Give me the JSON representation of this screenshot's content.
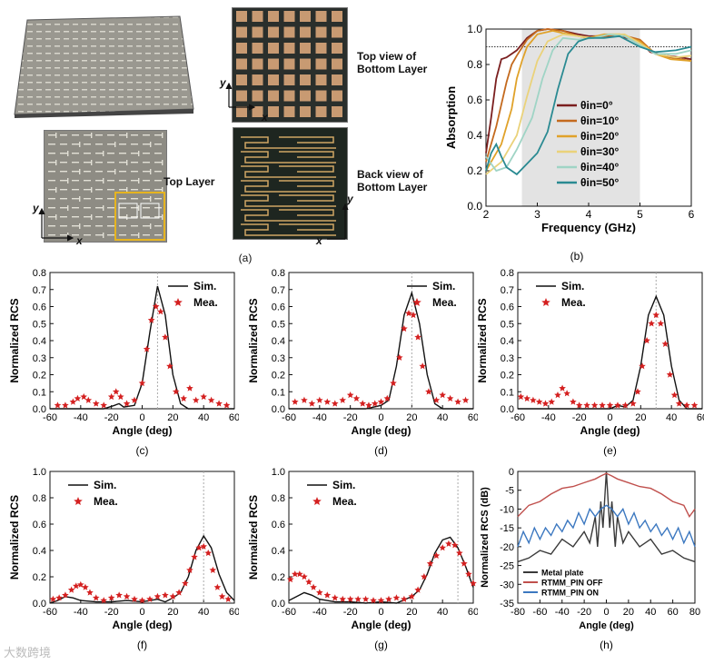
{
  "photos": {
    "top_view_label": "Top view of\nBottom Layer",
    "top_layer_label": "Top Layer",
    "back_view_label": "Back view of\nBottom Layer",
    "axis_x": "x",
    "axis_y": "y"
  },
  "panels": {
    "a": "(a)",
    "b": "(b)",
    "c": "(c)",
    "d": "(d)",
    "e": "(e)",
    "f": "(f)",
    "g": "(g)",
    "h": "(h)"
  },
  "watermark": "大数跨境",
  "chart_data": [
    {
      "id": "b",
      "type": "line",
      "xlabel": "Frequency (GHz)",
      "ylabel": "Absorption",
      "xlim": [
        2,
        6
      ],
      "ylim": [
        0,
        1.0
      ],
      "xticks": [
        2,
        3,
        4,
        5,
        6
      ],
      "yticks": [
        0.0,
        0.2,
        0.4,
        0.6,
        0.8,
        1.0
      ],
      "threshold": 0.9,
      "shade": [
        2.7,
        5.0
      ],
      "series": [
        {
          "name": "θin=0°",
          "color": "#7b1f1f",
          "x": [
            2.0,
            2.1,
            2.2,
            2.3,
            2.4,
            2.6,
            2.8,
            3.0,
            3.2,
            3.5,
            3.8,
            4.0,
            4.3,
            4.6,
            5.0,
            5.2,
            5.5,
            5.8,
            6.0
          ],
          "y": [
            0.3,
            0.5,
            0.72,
            0.83,
            0.84,
            0.88,
            0.95,
            0.99,
            1.0,
            0.99,
            0.97,
            0.96,
            0.96,
            0.96,
            0.93,
            0.87,
            0.85,
            0.84,
            0.83
          ]
        },
        {
          "name": "θin=10°",
          "color": "#c46a1e",
          "x": [
            2.0,
            2.2,
            2.4,
            2.5,
            2.6,
            2.8,
            3.0,
            3.2,
            3.5,
            3.8,
            4.0,
            4.3,
            4.6,
            5.0,
            5.3,
            5.6,
            6.0
          ],
          "y": [
            0.25,
            0.45,
            0.7,
            0.8,
            0.85,
            0.94,
            0.99,
            1.0,
            0.99,
            0.96,
            0.95,
            0.96,
            0.97,
            0.94,
            0.86,
            0.84,
            0.82
          ]
        },
        {
          "name": "θin=20°",
          "color": "#e0a22a",
          "x": [
            2.0,
            2.3,
            2.5,
            2.6,
            2.7,
            2.8,
            3.0,
            3.3,
            3.6,
            4.0,
            4.3,
            4.6,
            5.0,
            5.3,
            5.6,
            6.0
          ],
          "y": [
            0.2,
            0.35,
            0.55,
            0.72,
            0.82,
            0.9,
            0.97,
            0.99,
            0.97,
            0.95,
            0.97,
            0.97,
            0.93,
            0.86,
            0.83,
            0.82
          ]
        },
        {
          "name": "θin=30°",
          "color": "#ead27a",
          "x": [
            2.0,
            2.3,
            2.6,
            2.8,
            3.0,
            3.2,
            3.5,
            3.8,
            4.1,
            4.4,
            4.7,
            5.0,
            5.3,
            5.7,
            6.0
          ],
          "y": [
            0.18,
            0.25,
            0.4,
            0.62,
            0.82,
            0.93,
            0.97,
            0.96,
            0.95,
            0.97,
            0.97,
            0.92,
            0.86,
            0.84,
            0.85
          ]
        },
        {
          "name": "θin=40°",
          "color": "#9fd4c5",
          "x": [
            2.0,
            2.2,
            2.4,
            2.6,
            2.9,
            3.1,
            3.3,
            3.5,
            3.8,
            4.1,
            4.4,
            4.7,
            5.0,
            5.3,
            5.7,
            6.0
          ],
          "y": [
            0.28,
            0.2,
            0.22,
            0.32,
            0.5,
            0.72,
            0.88,
            0.95,
            0.94,
            0.95,
            0.97,
            0.96,
            0.91,
            0.86,
            0.86,
            0.88
          ]
        },
        {
          "name": "θin=50°",
          "color": "#2a8a92",
          "x": [
            2.0,
            2.1,
            2.2,
            2.3,
            2.4,
            2.6,
            2.8,
            3.0,
            3.2,
            3.4,
            3.6,
            3.8,
            4.0,
            4.3,
            4.6,
            5.0,
            5.3,
            5.7,
            6.0
          ],
          "y": [
            0.2,
            0.3,
            0.35,
            0.28,
            0.22,
            0.18,
            0.24,
            0.3,
            0.42,
            0.66,
            0.86,
            0.93,
            0.95,
            0.95,
            0.96,
            0.9,
            0.87,
            0.88,
            0.9
          ]
        }
      ]
    },
    {
      "id": "c",
      "type": "line",
      "xlabel": "Angle (deg)",
      "ylabel": "Normalized RCS",
      "xlim": [
        -60,
        60
      ],
      "ylim": [
        0,
        0.8
      ],
      "xticks": [
        -60,
        -40,
        -20,
        0,
        20,
        40,
        60
      ],
      "yticks": [
        0.0,
        0.1,
        0.2,
        0.3,
        0.4,
        0.5,
        0.6,
        0.7,
        0.8
      ],
      "vline": 10,
      "legend": [
        "Sim.",
        "Mea."
      ],
      "sim": {
        "x": [
          -60,
          -40,
          -25,
          -18,
          -15,
          -12,
          -5,
          0,
          5,
          10,
          15,
          20,
          25,
          30,
          40,
          60
        ],
        "y": [
          0,
          0,
          0,
          0.02,
          0.03,
          0.01,
          0.02,
          0.15,
          0.45,
          0.72,
          0.55,
          0.2,
          0.03,
          0,
          0,
          0
        ]
      },
      "mea": {
        "x": [
          -55,
          -50,
          -45,
          -42,
          -38,
          -35,
          -30,
          -25,
          -20,
          -17,
          -14,
          -10,
          -5,
          0,
          3,
          6,
          9,
          12,
          15,
          18,
          22,
          27,
          31,
          35,
          40,
          45,
          50,
          55
        ],
        "y": [
          0.02,
          0.02,
          0.04,
          0.06,
          0.07,
          0.05,
          0.03,
          0.02,
          0.07,
          0.1,
          0.07,
          0.03,
          0.05,
          0.15,
          0.35,
          0.52,
          0.6,
          0.57,
          0.42,
          0.25,
          0.1,
          0.06,
          0.12,
          0.05,
          0.07,
          0.05,
          0.03,
          0.02
        ]
      }
    },
    {
      "id": "d",
      "type": "line",
      "xlabel": "Angle (deg)",
      "ylabel": "Normalized RCS",
      "xlim": [
        -60,
        60
      ],
      "ylim": [
        0,
        0.8
      ],
      "xticks": [
        -60,
        -40,
        -20,
        0,
        20,
        40,
        60
      ],
      "yticks": [
        0.0,
        0.1,
        0.2,
        0.3,
        0.4,
        0.5,
        0.6,
        0.7,
        0.8
      ],
      "vline": 20,
      "legend": [
        "Sim.",
        "Mea."
      ],
      "sim": {
        "x": [
          -60,
          -30,
          -20,
          -10,
          0,
          5,
          10,
          15,
          20,
          25,
          30,
          35,
          40,
          60
        ],
        "y": [
          0,
          0,
          0,
          0,
          0.02,
          0.05,
          0.25,
          0.55,
          0.68,
          0.5,
          0.2,
          0.03,
          0,
          0
        ]
      },
      "mea": {
        "x": [
          -56,
          -50,
          -45,
          -40,
          -35,
          -30,
          -25,
          -20,
          -16,
          -12,
          -8,
          -4,
          0,
          4,
          8,
          12,
          15,
          18,
          21,
          24,
          27,
          31,
          36,
          40,
          45,
          50,
          55
        ],
        "y": [
          0.04,
          0.05,
          0.03,
          0.05,
          0.04,
          0.03,
          0.05,
          0.08,
          0.06,
          0.03,
          0.02,
          0.03,
          0.04,
          0.06,
          0.15,
          0.3,
          0.47,
          0.56,
          0.55,
          0.42,
          0.25,
          0.1,
          0.05,
          0.08,
          0.06,
          0.04,
          0.05
        ]
      }
    },
    {
      "id": "e",
      "type": "line",
      "xlabel": "Angle (deg)",
      "ylabel": "Normalized RCS",
      "xlim": [
        -60,
        60
      ],
      "ylim": [
        0,
        0.8
      ],
      "xticks": [
        -60,
        -40,
        -20,
        0,
        20,
        40,
        60
      ],
      "yticks": [
        0.0,
        0.1,
        0.2,
        0.3,
        0.4,
        0.5,
        0.6,
        0.7,
        0.8
      ],
      "vline": 30,
      "legend": [
        "Sim.",
        "Mea."
      ],
      "sim": {
        "x": [
          -60,
          -20,
          0,
          5,
          10,
          15,
          20,
          25,
          30,
          35,
          40,
          45,
          50,
          60
        ],
        "y": [
          0,
          0,
          0,
          0.02,
          0.01,
          0.05,
          0.25,
          0.55,
          0.66,
          0.55,
          0.25,
          0.05,
          0,
          0
        ]
      },
      "mea": {
        "x": [
          -58,
          -54,
          -50,
          -46,
          -42,
          -38,
          -34,
          -31,
          -28,
          -24,
          -20,
          -15,
          -10,
          -5,
          0,
          5,
          10,
          15,
          18,
          21,
          24,
          27,
          30,
          33,
          36,
          39,
          42,
          45,
          50,
          55
        ],
        "y": [
          0.07,
          0.06,
          0.05,
          0.04,
          0.03,
          0.04,
          0.08,
          0.12,
          0.09,
          0.04,
          0.02,
          0.02,
          0.02,
          0.02,
          0.02,
          0.02,
          0.02,
          0.03,
          0.1,
          0.25,
          0.4,
          0.5,
          0.55,
          0.5,
          0.38,
          0.2,
          0.08,
          0.03,
          0.02,
          0.02
        ]
      }
    },
    {
      "id": "f",
      "type": "line",
      "xlabel": "Angle (deg)",
      "ylabel": "Normalized RCS",
      "xlim": [
        -60,
        60
      ],
      "ylim": [
        0,
        1.0
      ],
      "xticks": [
        -60,
        -40,
        -20,
        0,
        20,
        40,
        60
      ],
      "yticks": [
        0.0,
        0.2,
        0.4,
        0.6,
        0.8,
        1.0
      ],
      "vline": 40,
      "legend": [
        "Sim.",
        "Mea."
      ],
      "sim": {
        "x": [
          -60,
          -55,
          -50,
          -45,
          -40,
          -30,
          -20,
          -10,
          0,
          10,
          15,
          20,
          25,
          30,
          35,
          40,
          45,
          50,
          55,
          60
        ],
        "y": [
          0.0,
          0.02,
          0.05,
          0.04,
          0.02,
          0.01,
          0.01,
          0.02,
          0.01,
          0.03,
          0.01,
          0.04,
          0.08,
          0.2,
          0.4,
          0.51,
          0.42,
          0.22,
          0.08,
          0.02
        ]
      },
      "mea": {
        "x": [
          -58,
          -54,
          -50,
          -46,
          -43,
          -40,
          -37,
          -34,
          -30,
          -25,
          -20,
          -15,
          -10,
          -5,
          0,
          5,
          10,
          15,
          20,
          24,
          28,
          31,
          34,
          37,
          40,
          43,
          46,
          49,
          52,
          56
        ],
        "y": [
          0.03,
          0.04,
          0.06,
          0.1,
          0.13,
          0.14,
          0.12,
          0.08,
          0.04,
          0.02,
          0.04,
          0.06,
          0.05,
          0.03,
          0.02,
          0.03,
          0.05,
          0.06,
          0.05,
          0.08,
          0.15,
          0.25,
          0.35,
          0.42,
          0.43,
          0.38,
          0.25,
          0.12,
          0.05,
          0.03
        ]
      }
    },
    {
      "id": "g",
      "type": "line",
      "xlabel": "Angle (deg)",
      "ylabel": "Normalized RCS",
      "xlim": [
        -60,
        60
      ],
      "ylim": [
        0,
        1.0
      ],
      "xticks": [
        -60,
        -40,
        -20,
        0,
        20,
        40,
        60
      ],
      "yticks": [
        0.0,
        0.2,
        0.4,
        0.6,
        0.8,
        1.0
      ],
      "vline": 50,
      "legend": [
        "Sim.",
        "Mea."
      ],
      "sim": {
        "x": [
          -60,
          -55,
          -50,
          -45,
          -40,
          -30,
          -20,
          -10,
          0,
          10,
          20,
          25,
          30,
          35,
          40,
          45,
          50,
          55,
          60
        ],
        "y": [
          0.02,
          0.05,
          0.08,
          0.06,
          0.03,
          0.01,
          0.01,
          0.0,
          0.01,
          0.0,
          0.05,
          0.1,
          0.22,
          0.38,
          0.48,
          0.5,
          0.42,
          0.28,
          0.12
        ]
      },
      "mea": {
        "x": [
          -59,
          -56,
          -53,
          -50,
          -47,
          -44,
          -40,
          -35,
          -30,
          -25,
          -20,
          -15,
          -10,
          -5,
          0,
          5,
          10,
          15,
          20,
          24,
          28,
          32,
          36,
          40,
          44,
          48,
          51,
          54,
          57,
          60
        ],
        "y": [
          0.18,
          0.22,
          0.22,
          0.2,
          0.16,
          0.12,
          0.08,
          0.06,
          0.04,
          0.03,
          0.03,
          0.03,
          0.03,
          0.02,
          0.02,
          0.03,
          0.04,
          0.03,
          0.05,
          0.1,
          0.2,
          0.3,
          0.36,
          0.42,
          0.45,
          0.44,
          0.38,
          0.3,
          0.22,
          0.15
        ]
      }
    },
    {
      "id": "h",
      "type": "line",
      "xlabel": "Angle (deg)",
      "ylabel": "Normalized RCS (dB)",
      "xlim": [
        -80,
        80
      ],
      "ylim": [
        -35,
        0
      ],
      "xticks": [
        -80,
        -60,
        -40,
        -20,
        0,
        20,
        40,
        60,
        80
      ],
      "yticks": [
        0,
        -5,
        -10,
        -15,
        -20,
        -25,
        -30,
        -35
      ],
      "series": [
        {
          "name": "Metal plate",
          "color": "#3a3a3a",
          "x": [
            -80,
            -70,
            -60,
            -50,
            -40,
            -30,
            -20,
            -15,
            -10,
            -8,
            -5,
            -3,
            0,
            3,
            5,
            8,
            10,
            15,
            20,
            30,
            40,
            50,
            60,
            70,
            80
          ],
          "y": [
            -24,
            -23,
            -21,
            -22,
            -18,
            -20,
            -16,
            -19,
            -12,
            -20,
            -8,
            -15,
            0,
            -15,
            -8,
            -20,
            -12,
            -19,
            -16,
            -20,
            -18,
            -22,
            -21,
            -23,
            -24
          ]
        },
        {
          "name": "RTMM_PIN OFF",
          "color": "#c0504d",
          "x": [
            -80,
            -70,
            -60,
            -50,
            -40,
            -30,
            -20,
            -10,
            -5,
            0,
            5,
            10,
            20,
            30,
            40,
            50,
            60,
            70,
            75,
            80
          ],
          "y": [
            -12,
            -9,
            -8,
            -6,
            -4.5,
            -4,
            -3,
            -2,
            -1.2,
            -0.5,
            -1.2,
            -2,
            -3,
            -4,
            -4.5,
            -6,
            -8,
            -9,
            -12,
            -10
          ]
        },
        {
          "name": "RTMM_PIN ON",
          "color": "#3c78c0",
          "x": [
            -80,
            -75,
            -70,
            -65,
            -60,
            -55,
            -50,
            -45,
            -40,
            -35,
            -30,
            -25,
            -20,
            -15,
            -10,
            -5,
            0,
            5,
            10,
            15,
            20,
            25,
            30,
            35,
            40,
            45,
            50,
            55,
            60,
            65,
            70,
            75,
            80
          ],
          "y": [
            -20,
            -16,
            -19,
            -15,
            -18,
            -15,
            -17,
            -14,
            -16,
            -13,
            -15,
            -11,
            -14,
            -10,
            -12,
            -10,
            -9,
            -10,
            -12,
            -10,
            -14,
            -11,
            -15,
            -13,
            -16,
            -14,
            -17,
            -15,
            -18,
            -15,
            -19,
            -16,
            -20
          ]
        }
      ]
    }
  ]
}
